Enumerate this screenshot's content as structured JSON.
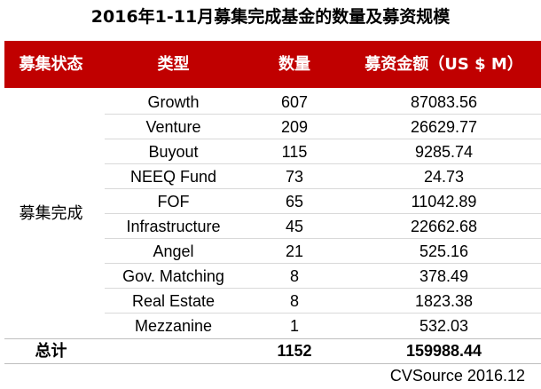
{
  "title": "2016年1-11月募集完成基金的数量及募资规模",
  "header": {
    "status": "募集状态",
    "type": "类型",
    "count": "数量",
    "amount": "募资金额（US $ M）"
  },
  "status_label": "募集完成",
  "rows": [
    {
      "type": "Growth",
      "count": "607",
      "amount": "87083.56"
    },
    {
      "type": "Venture",
      "count": "209",
      "amount": "26629.77"
    },
    {
      "type": "Buyout",
      "count": "115",
      "amount": "9285.74"
    },
    {
      "type": "NEEQ Fund",
      "count": "73",
      "amount": "24.73"
    },
    {
      "type": "FOF",
      "count": "65",
      "amount": "11042.89"
    },
    {
      "type": "Infrastructure",
      "count": "45",
      "amount": "22662.68"
    },
    {
      "type": "Angel",
      "count": "21",
      "amount": "525.16"
    },
    {
      "type": "Gov. Matching",
      "count": "8",
      "amount": "378.49"
    },
    {
      "type": "Real Estate",
      "count": "8",
      "amount": "1823.38"
    },
    {
      "type": "Mezzanine",
      "count": "1",
      "amount": "532.03"
    }
  ],
  "total": {
    "label": "总计",
    "count": "1152",
    "amount": "159988.44"
  },
  "source": "CVSource 2016.12",
  "colors": {
    "header_bg": "#c00000",
    "header_text": "#ffffff"
  }
}
